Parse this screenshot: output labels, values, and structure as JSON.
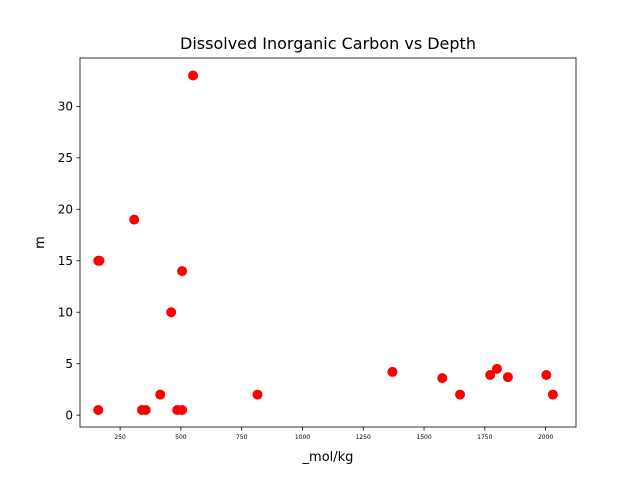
{
  "chart_data": {
    "type": "scatter",
    "title": "Dissolved Inorganic Carbon vs Depth",
    "xlabel": "_mol/kg",
    "ylabel": "m",
    "xlim": [
      85,
      2125
    ],
    "ylim": [
      -1.15,
      34.7
    ],
    "xticks": [
      250,
      500,
      750,
      1000,
      1250,
      1500,
      1750,
      2000
    ],
    "yticks": [
      0,
      5,
      10,
      15,
      20,
      25,
      30
    ],
    "marker_color": "#ff0000",
    "grid": false,
    "points": [
      {
        "x": 160,
        "y": 0.5
      },
      {
        "x": 160,
        "y": 15
      },
      {
        "x": 165,
        "y": 15
      },
      {
        "x": 308,
        "y": 19
      },
      {
        "x": 340,
        "y": 0.5
      },
      {
        "x": 355,
        "y": 0.5
      },
      {
        "x": 415,
        "y": 2
      },
      {
        "x": 460,
        "y": 10
      },
      {
        "x": 485,
        "y": 0.5
      },
      {
        "x": 505,
        "y": 0.5
      },
      {
        "x": 505,
        "y": 14
      },
      {
        "x": 550,
        "y": 33
      },
      {
        "x": 815,
        "y": 2
      },
      {
        "x": 1370,
        "y": 4.2
      },
      {
        "x": 1575,
        "y": 3.6
      },
      {
        "x": 1648,
        "y": 2
      },
      {
        "x": 1772,
        "y": 3.9
      },
      {
        "x": 1800,
        "y": 4.5
      },
      {
        "x": 1845,
        "y": 3.7
      },
      {
        "x": 2003,
        "y": 3.9
      },
      {
        "x": 2030,
        "y": 2
      }
    ]
  }
}
